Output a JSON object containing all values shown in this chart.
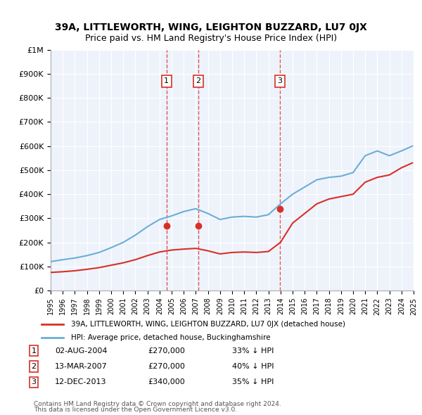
{
  "title": "39A, LITTLEWORTH, WING, LEIGHTON BUZZARD, LU7 0JX",
  "subtitle": "Price paid vs. HM Land Registry's House Price Index (HPI)",
  "legend_label_red": "39A, LITTLEWORTH, WING, LEIGHTON BUZZARD, LU7 0JX (detached house)",
  "legend_label_blue": "HPI: Average price, detached house, Buckinghamshire",
  "footer_line1": "Contains HM Land Registry data © Crown copyright and database right 2024.",
  "footer_line2": "This data is licensed under the Open Government Licence v3.0.",
  "transactions": [
    {
      "num": 1,
      "date": "02-AUG-2004",
      "price": 270000,
      "pct": "33% ↓ HPI",
      "year": 2004.58
    },
    {
      "num": 2,
      "date": "13-MAR-2007",
      "price": 270000,
      "pct": "40% ↓ HPI",
      "year": 2007.19
    },
    {
      "num": 3,
      "date": "12-DEC-2013",
      "price": 340000,
      "pct": "35% ↓ HPI",
      "year": 2013.94
    }
  ],
  "hpi_color": "#6baed6",
  "price_color": "#d73027",
  "background_plot": "#eef3fb",
  "background_fig": "#ffffff",
  "ylim": [
    0,
    1000000
  ],
  "yticks": [
    0,
    100000,
    200000,
    300000,
    400000,
    500000,
    600000,
    700000,
    800000,
    900000,
    1000000
  ],
  "xlim_start": 1995,
  "xlim_end": 2025,
  "hpi_years": [
    1995,
    1996,
    1997,
    1998,
    1999,
    2000,
    2001,
    2002,
    2003,
    2004,
    2005,
    2006,
    2007,
    2008,
    2009,
    2010,
    2011,
    2012,
    2013,
    2014,
    2015,
    2016,
    2017,
    2018,
    2019,
    2020,
    2021,
    2022,
    2023,
    2024,
    2024.9
  ],
  "hpi_values": [
    120000,
    128000,
    135000,
    145000,
    158000,
    178000,
    200000,
    230000,
    265000,
    295000,
    310000,
    328000,
    340000,
    320000,
    295000,
    305000,
    308000,
    305000,
    315000,
    360000,
    400000,
    430000,
    460000,
    470000,
    475000,
    490000,
    560000,
    580000,
    560000,
    580000,
    600000
  ],
  "price_years": [
    1995,
    1996,
    1997,
    1998,
    1999,
    2000,
    2001,
    2002,
    2003,
    2004,
    2005,
    2006,
    2007,
    2008,
    2009,
    2010,
    2011,
    2012,
    2013,
    2014,
    2015,
    2016,
    2017,
    2018,
    2019,
    2020,
    2021,
    2022,
    2023,
    2024,
    2024.9
  ],
  "price_values": [
    75000,
    78000,
    82000,
    88000,
    95000,
    105000,
    115000,
    128000,
    145000,
    160000,
    168000,
    172000,
    175000,
    165000,
    152000,
    158000,
    160000,
    158000,
    162000,
    200000,
    280000,
    320000,
    360000,
    380000,
    390000,
    400000,
    450000,
    470000,
    480000,
    510000,
    530000
  ]
}
